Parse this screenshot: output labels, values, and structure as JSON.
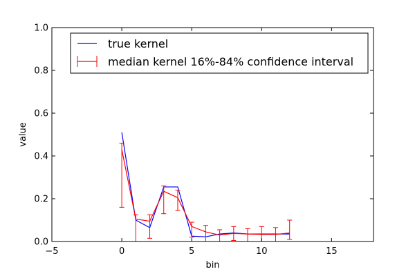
{
  "chart_data": {
    "type": "line",
    "xlabel": "bin",
    "ylabel": "value",
    "xlim": [
      -5,
      18
    ],
    "ylim": [
      0,
      1.0
    ],
    "xticks": [
      -5,
      0,
      5,
      10,
      15
    ],
    "xtick_labels": [
      "−5",
      "0",
      "5",
      "10",
      "15"
    ],
    "yticks": [
      0,
      0.2,
      0.4,
      0.6,
      0.8,
      1.0
    ],
    "ytick_labels": [
      "0.0",
      "0.2",
      "0.4",
      "0.6",
      "0.8",
      "1.0"
    ],
    "legend_position": "top",
    "grid": false,
    "series": [
      {
        "name": "true kernel",
        "color": "#0000ff",
        "x": [
          0,
          1,
          2,
          3,
          4,
          5,
          6,
          7,
          8,
          9,
          10,
          11,
          12
        ],
        "y": [
          0.51,
          0.1,
          0.065,
          0.255,
          0.255,
          0.025,
          0.022,
          0.035,
          0.04,
          0.035,
          0.035,
          0.035,
          0.035
        ]
      },
      {
        "name": "median kernel 16%-84% confidence interval",
        "color": "#ff0000",
        "x": [
          0,
          1,
          2,
          3,
          4,
          5,
          6,
          7,
          8,
          9,
          10,
          11,
          12
        ],
        "y": [
          0.43,
          0.105,
          0.095,
          0.235,
          0.205,
          0.07,
          0.045,
          0.03,
          0.038,
          0.035,
          0.033,
          0.033,
          0.04
        ],
        "err_low": [
          0.16,
          0.0,
          0.015,
          0.13,
          0.145,
          0.02,
          0.0,
          0.0,
          0.005,
          0.0,
          0.0,
          0.0,
          0.01
        ],
        "err_high": [
          0.46,
          0.125,
          0.125,
          0.26,
          0.24,
          0.09,
          0.075,
          0.055,
          0.07,
          0.06,
          0.07,
          0.065,
          0.1
        ]
      }
    ]
  }
}
